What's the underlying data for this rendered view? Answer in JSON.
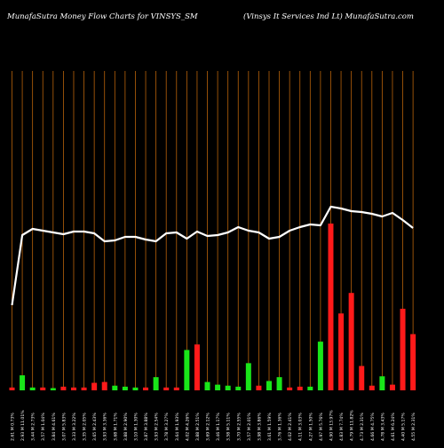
{
  "header": {
    "left_title": "MunafaSutra  Money Flow  Charts for VINSYS_SM",
    "right_title": "(Vinsys It Services Ind Lt) MunafaSutra.com"
  },
  "colors": {
    "background": "#000000",
    "grid": "#b8620a",
    "line": "#ffffff",
    "up_bar": "#19e619",
    "down_bar": "#ff1a1a",
    "label": "#ffffff"
  },
  "chart_data": {
    "type": "bar",
    "title": "",
    "xlabel": "",
    "ylabel": "",
    "grid": "vertical",
    "legend": "none",
    "y_axis_ticks": "none",
    "value_units": "relative money flow (0 = baseline, 1 = tallest bar)",
    "x_labels": [
      "2.61 M 0.73%",
      "2.93 M 11.01%",
      "3.44 M 2.73%",
      "3.57 M 1.04%",
      "3.84 M 4.61%",
      "3.07 M 5.83%",
      "3.33 M 3.22%",
      "3.35 M 2.05%",
      "3.65 M 2.43%",
      "3.93 M 3.36%",
      "3.68 M 1.71%",
      "3.88 M 2.90%",
      "3.10 M 1.30%",
      "3.87 M 3.88%",
      "3.93 M 2.54%",
      "3.78 M 3.27%",
      "3.64 M 1.93%",
      "4.02 M 4.26%",
      "3.88 M 2.51%",
      "3.69 M 2.12%",
      "3.46 M 1.17%",
      "3.58 M 5.11%",
      "3.70 M 2.55%",
      "3.57 M 2.01%",
      "3.98 M 3.86%",
      "3.61 M 1.59%",
      "3.76 M 1.36%",
      "4.02 M 2.41%",
      "4.11 M 3.03%",
      "4.27 M 1.50%",
      "4.97 M 5.76%",
      "4.90 M 13.97%",
      "4.83 M 7.74%",
      "4.79 M 11.82%",
      "4.73 M 2.31%",
      "4.66 M 4.75%",
      "4.78 M 3.43%",
      "4.61 M 6.24%",
      "4.40 M 5.17%",
      "4.55 M 2.31%"
    ],
    "series": [
      {
        "color_key": "bar",
        "values": [
          0.017,
          0.09,
          0.017,
          0.017,
          0.011,
          0.022,
          0.017,
          0.017,
          0.045,
          0.05,
          0.028,
          0.022,
          0.017,
          0.017,
          0.079,
          0.017,
          0.017,
          0.242,
          0.275,
          0.05,
          0.034,
          0.028,
          0.022,
          0.163,
          0.028,
          0.056,
          0.079,
          0.017,
          0.022,
          0.022,
          0.292,
          1.0,
          0.461,
          0.584,
          0.146,
          0.028,
          0.084,
          0.034,
          0.489,
          0.337
        ],
        "direction": [
          "down",
          "up",
          "up",
          "down",
          "up",
          "down",
          "down",
          "down",
          "down",
          "down",
          "up",
          "up",
          "up",
          "down",
          "up",
          "down",
          "down",
          "up",
          "down",
          "up",
          "up",
          "up",
          "up",
          "up",
          "down",
          "up",
          "up",
          "down",
          "down",
          "up",
          "up",
          "down",
          "down",
          "down",
          "down",
          "down",
          "up",
          "down",
          "down",
          "down"
        ]
      },
      {
        "color_key": "line",
        "values": [
          0.48,
          0.875,
          0.91,
          0.9,
          0.89,
          0.88,
          0.895,
          0.895,
          0.885,
          0.84,
          0.845,
          0.865,
          0.865,
          0.85,
          0.84,
          0.885,
          0.89,
          0.855,
          0.895,
          0.87,
          0.875,
          0.89,
          0.92,
          0.9,
          0.89,
          0.855,
          0.865,
          0.9,
          0.92,
          0.935,
          0.93,
          1.035,
          1.025,
          1.01,
          1.005,
          0.995,
          0.98,
          1.0,
          0.96,
          0.915
        ]
      }
    ]
  }
}
